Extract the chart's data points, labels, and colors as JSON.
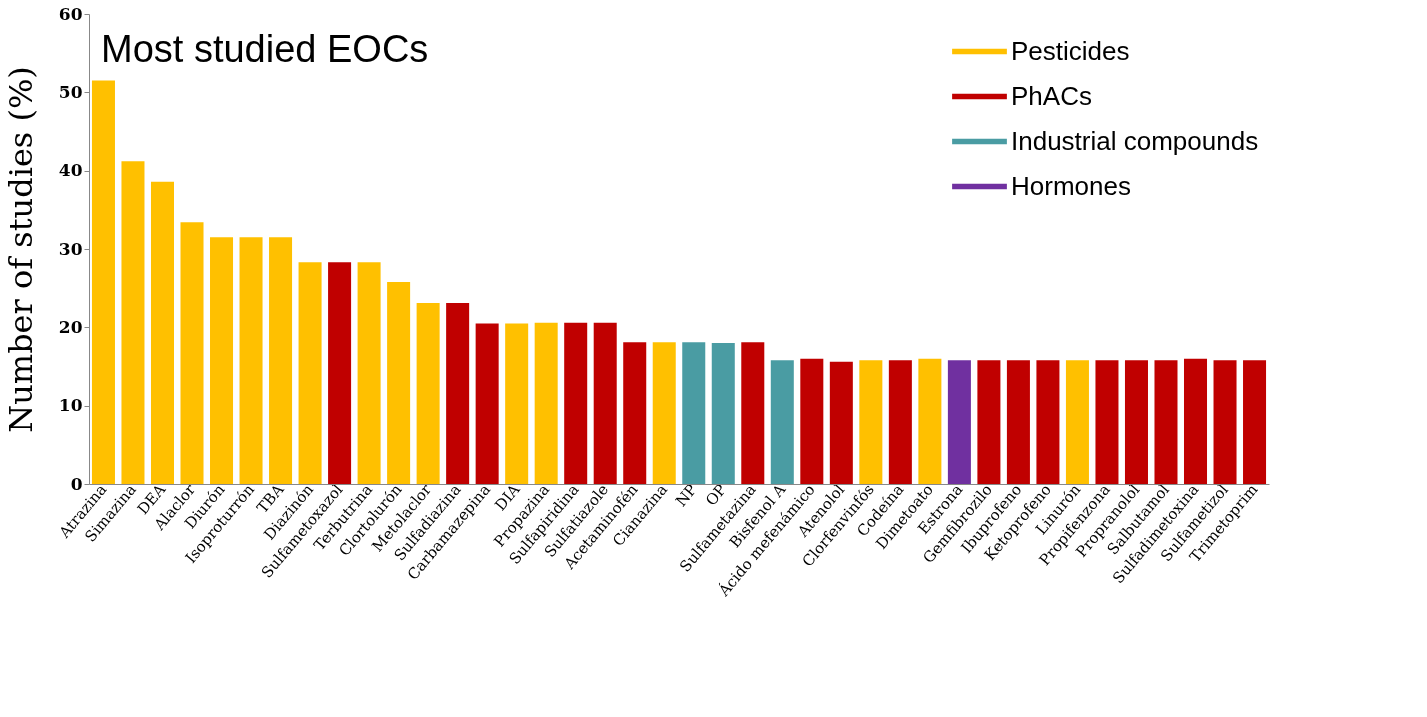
{
  "chart_data": {
    "type": "bar",
    "title": "Most studied EOCs",
    "ylabel": "Number of studies (%)",
    "categories": [
      "Atrazina",
      "Simazina",
      "DEA",
      "Alaclor",
      "Diurón",
      "Isoproturrón",
      "TBA",
      "Diazinón",
      "Sulfametoxazol",
      "Terbutrina",
      "Clortolurón",
      "Metolaclor",
      "Sulfadiazina",
      "Carbamazepina",
      "DIA",
      "Propazina",
      "Sulfapiridina",
      "Sulfatiazole",
      "Acetaminofén",
      "Cianazina",
      "NP",
      "OP",
      "Sulfametazina",
      "Bisfenol A",
      "Ácido mefenámico",
      "Atenolol",
      "Clorfenvinfós",
      "Codeína",
      "Dimetoato",
      "Estrona",
      "Gemfibrozilo",
      "Ibuprofeno",
      "Ketoprofeno",
      "Linurón",
      "Propifenzona",
      "Propranolol",
      "Salbutamol",
      "Sulfadimetoxina",
      "Sulfametizol",
      "Trimetoprim"
    ],
    "series": [
      {
        "name": "Pesticides",
        "color": "#ffc000",
        "values": [
          51.5,
          41.2,
          38.6,
          33.4,
          31.5,
          31.5,
          31.5,
          28.3,
          null,
          28.3,
          25.8,
          23.1,
          null,
          null,
          20.5,
          20.6,
          null,
          null,
          null,
          18.1,
          null,
          null,
          null,
          null,
          null,
          null,
          15.8,
          null,
          16.0,
          null,
          null,
          null,
          null,
          15.8,
          null,
          null,
          null,
          null,
          null,
          null
        ]
      },
      {
        "name": "PhACs",
        "color": "#c00000",
        "values": [
          null,
          null,
          null,
          null,
          null,
          null,
          null,
          null,
          28.3,
          null,
          null,
          null,
          23.1,
          20.5,
          null,
          null,
          20.6,
          20.6,
          18.1,
          null,
          null,
          null,
          18.1,
          null,
          16.0,
          15.6,
          null,
          15.8,
          null,
          null,
          15.8,
          15.8,
          15.8,
          null,
          15.8,
          15.8,
          15.8,
          16.0,
          15.8,
          15.8
        ]
      },
      {
        "name": "Industrial compounds",
        "color": "#4a9ca3",
        "values": [
          null,
          null,
          null,
          null,
          null,
          null,
          null,
          null,
          null,
          null,
          null,
          null,
          null,
          null,
          null,
          null,
          null,
          null,
          null,
          null,
          18.1,
          18.0,
          null,
          15.8,
          null,
          null,
          null,
          null,
          null,
          null,
          null,
          null,
          null,
          null,
          null,
          null,
          null,
          null,
          null,
          null
        ]
      },
      {
        "name": "Hormones",
        "color": "#7030a0",
        "values": [
          null,
          null,
          null,
          null,
          null,
          null,
          null,
          null,
          null,
          null,
          null,
          null,
          null,
          null,
          null,
          null,
          null,
          null,
          null,
          null,
          null,
          null,
          null,
          null,
          null,
          null,
          null,
          null,
          null,
          15.8,
          null,
          null,
          null,
          null,
          null,
          null,
          null,
          null,
          null,
          null
        ]
      }
    ],
    "ylim": [
      0,
      60
    ],
    "yticks": [
      0,
      10,
      20,
      30,
      40,
      50,
      60
    ],
    "grid": false,
    "legend": "top right"
  }
}
